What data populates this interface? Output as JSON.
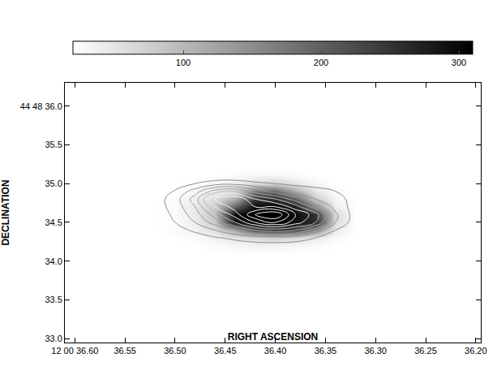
{
  "chart_data": {
    "type": "heatmap",
    "x_label": "RIGHT ASCENSION",
    "y_label": "DECLINATION",
    "xlim": [
      36.61,
      36.195
    ],
    "xticks": [
      {
        "value": 36.6,
        "label": "12 00 36.60"
      },
      {
        "value": 36.55,
        "label": "36.55"
      },
      {
        "value": 36.5,
        "label": "36.50"
      },
      {
        "value": 36.45,
        "label": "36.45"
      },
      {
        "value": 36.4,
        "label": "36.40"
      },
      {
        "value": 36.35,
        "label": "36.35"
      },
      {
        "value": 36.3,
        "label": "36.30"
      },
      {
        "value": 36.25,
        "label": "36.25"
      },
      {
        "value": 36.2,
        "label": "36.20"
      }
    ],
    "ylim": [
      32.95,
      36.3
    ],
    "yticks": [
      {
        "value": 36.0,
        "label": "44 48 36.0"
      },
      {
        "value": 35.5,
        "label": "35.5"
      },
      {
        "value": 35.0,
        "label": "35.0"
      },
      {
        "value": 34.5,
        "label": "34.5"
      },
      {
        "value": 34.0,
        "label": "34.0"
      },
      {
        "value": 33.5,
        "label": "33.5"
      },
      {
        "value": 33.0,
        "label": "33.0"
      }
    ],
    "x": [
      36.54,
      36.52,
      36.5,
      36.48,
      36.46,
      36.44,
      36.42,
      36.4,
      36.38,
      36.36,
      36.34,
      36.32,
      36.3
    ],
    "y": [
      34.0,
      34.1,
      34.2,
      34.3,
      34.4,
      34.5,
      34.6,
      34.7,
      34.8,
      34.9,
      35.0,
      35.1,
      35.2,
      35.3,
      35.4
    ],
    "image": [
      [
        20,
        20,
        20,
        20,
        20,
        20,
        20,
        20,
        20,
        20,
        20,
        20,
        20
      ],
      [
        20,
        20,
        20,
        20,
        20,
        20,
        20,
        20,
        20,
        20,
        20,
        20,
        20
      ],
      [
        20,
        20,
        20,
        20,
        25,
        30,
        35,
        35,
        30,
        25,
        20,
        20,
        20
      ],
      [
        20,
        20,
        20,
        25,
        35,
        50,
        60,
        70,
        60,
        45,
        25,
        20,
        20
      ],
      [
        20,
        20,
        25,
        35,
        60,
        120,
        220,
        250,
        230,
        150,
        40,
        20,
        20
      ],
      [
        20,
        20,
        25,
        40,
        80,
        280,
        310,
        310,
        290,
        260,
        60,
        20,
        20
      ],
      [
        20,
        20,
        25,
        45,
        90,
        300,
        310,
        310,
        300,
        250,
        60,
        20,
        20
      ],
      [
        20,
        20,
        25,
        45,
        80,
        200,
        300,
        310,
        280,
        150,
        40,
        20,
        20
      ],
      [
        20,
        20,
        25,
        40,
        60,
        110,
        250,
        260,
        200,
        80,
        30,
        20,
        20
      ],
      [
        20,
        20,
        20,
        30,
        45,
        60,
        180,
        200,
        120,
        50,
        25,
        20,
        20
      ],
      [
        20,
        20,
        20,
        25,
        30,
        40,
        60,
        70,
        50,
        30,
        20,
        20,
        20
      ],
      [
        20,
        20,
        20,
        20,
        20,
        25,
        30,
        30,
        25,
        20,
        20,
        20,
        20
      ],
      [
        20,
        20,
        20,
        20,
        20,
        20,
        20,
        20,
        20,
        20,
        20,
        20,
        20
      ],
      [
        20,
        20,
        20,
        20,
        20,
        20,
        20,
        20,
        20,
        20,
        20,
        20,
        20
      ],
      [
        20,
        20,
        20,
        20,
        20,
        20,
        20,
        20,
        20,
        20,
        20,
        20,
        20
      ]
    ],
    "colorbar": {
      "range": [
        20,
        310
      ],
      "ticks": [
        100,
        200,
        300
      ]
    },
    "contours": {
      "z": [
        [
          0,
          0,
          0,
          0,
          0,
          0,
          0,
          0,
          0,
          0,
          0,
          0,
          0
        ],
        [
          0,
          0,
          0,
          0,
          0,
          0,
          0,
          0,
          0,
          0,
          0,
          0,
          0
        ],
        [
          0,
          0,
          0,
          0,
          0.3,
          0.5,
          0.6,
          0.6,
          0.5,
          0.3,
          0,
          0,
          0
        ],
        [
          0,
          0,
          0.2,
          0.5,
          0.9,
          1.2,
          1.5,
          1.6,
          1.5,
          1.0,
          0.4,
          0,
          0
        ],
        [
          0,
          0.2,
          0.6,
          1.2,
          2,
          3,
          4,
          4.5,
          4,
          2.5,
          1,
          0.2,
          0
        ],
        [
          0,
          0.3,
          1,
          2,
          3.5,
          5,
          7,
          8,
          6.5,
          5,
          2,
          0.4,
          0
        ],
        [
          0,
          0.4,
          1.2,
          2.5,
          4.5,
          6.5,
          9,
          10,
          7,
          5.5,
          2.2,
          0.5,
          0
        ],
        [
          0,
          0.5,
          1.4,
          3,
          6,
          7.5,
          7,
          7,
          5.5,
          3.5,
          1.6,
          0.6,
          0
        ],
        [
          0,
          0.5,
          1.5,
          3.5,
          7,
          8,
          6,
          5,
          3.5,
          2,
          1.2,
          0.8,
          0
        ],
        [
          0,
          0.3,
          1.1,
          2.5,
          4.5,
          5,
          3.5,
          2.5,
          1.6,
          1.2,
          1.0,
          0.6,
          0
        ],
        [
          0,
          0,
          0.4,
          1,
          1.5,
          1.6,
          1.2,
          1,
          0.8,
          0.8,
          0.9,
          0.5,
          0
        ],
        [
          0,
          0,
          0,
          0,
          0.2,
          0.2,
          0.2,
          0.2,
          0.3,
          0.6,
          1.0,
          0.5,
          0
        ],
        [
          0,
          0,
          0,
          0,
          0,
          0,
          0,
          0,
          0,
          0.3,
          1.0,
          0.6,
          0
        ],
        [
          0,
          0,
          0,
          0,
          0,
          0,
          0,
          0,
          0,
          0.2,
          0.9,
          0.5,
          0
        ],
        [
          0,
          0,
          0,
          0,
          0,
          0,
          0,
          0,
          0,
          0,
          0.3,
          0,
          0
        ]
      ],
      "levels": {
        "start": 1,
        "end": 9,
        "step": 1
      }
    }
  }
}
